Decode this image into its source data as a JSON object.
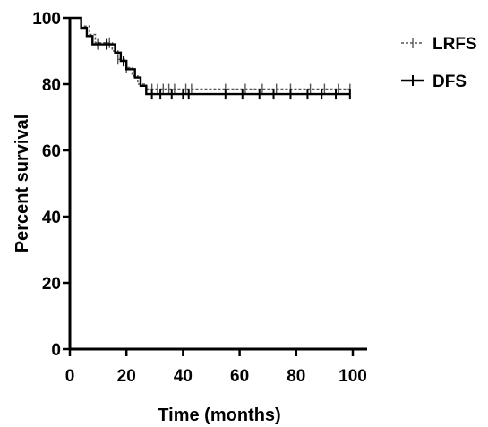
{
  "chart_data": {
    "type": "line",
    "title": "",
    "xlabel": "Time (months)",
    "ylabel": "Percent survival",
    "xlim": [
      0,
      100
    ],
    "ylim": [
      0,
      100
    ],
    "x_ticks": [
      "0",
      "20",
      "40",
      "60",
      "80",
      "100"
    ],
    "y_ticks": [
      "0",
      "20",
      "40",
      "60",
      "80",
      "100"
    ],
    "grid": false,
    "legend_position": "top-right",
    "series": [
      {
        "name": "LRFS",
        "style": "dashed",
        "color": "#555555",
        "steps": [
          [
            0,
            100
          ],
          [
            4,
            97.5
          ],
          [
            7,
            95
          ],
          [
            9,
            92.5
          ],
          [
            14,
            92.5
          ],
          [
            15,
            90
          ],
          [
            17,
            87.5
          ],
          [
            20,
            85
          ],
          [
            22,
            82.5
          ],
          [
            24,
            80
          ],
          [
            27,
            78.5
          ],
          [
            99,
            78.5
          ]
        ],
        "censored_x": [
          14,
          17,
          20,
          29,
          31,
          33,
          35,
          37,
          41,
          43,
          55,
          62,
          68,
          73,
          78,
          85,
          90,
          95,
          99
        ]
      },
      {
        "name": "DFS",
        "style": "solid",
        "color": "#000000",
        "steps": [
          [
            0,
            100
          ],
          [
            4,
            97
          ],
          [
            6,
            94.5
          ],
          [
            8,
            92
          ],
          [
            14,
            92
          ],
          [
            16,
            89.5
          ],
          [
            18,
            87
          ],
          [
            20,
            84.5
          ],
          [
            23,
            82
          ],
          [
            25,
            79.5
          ],
          [
            27,
            77
          ],
          [
            99,
            77
          ]
        ],
        "censored_x": [
          10,
          13,
          19,
          29,
          32,
          36,
          40,
          42,
          55,
          61,
          67,
          72,
          78,
          84,
          89,
          94,
          99
        ]
      }
    ]
  }
}
